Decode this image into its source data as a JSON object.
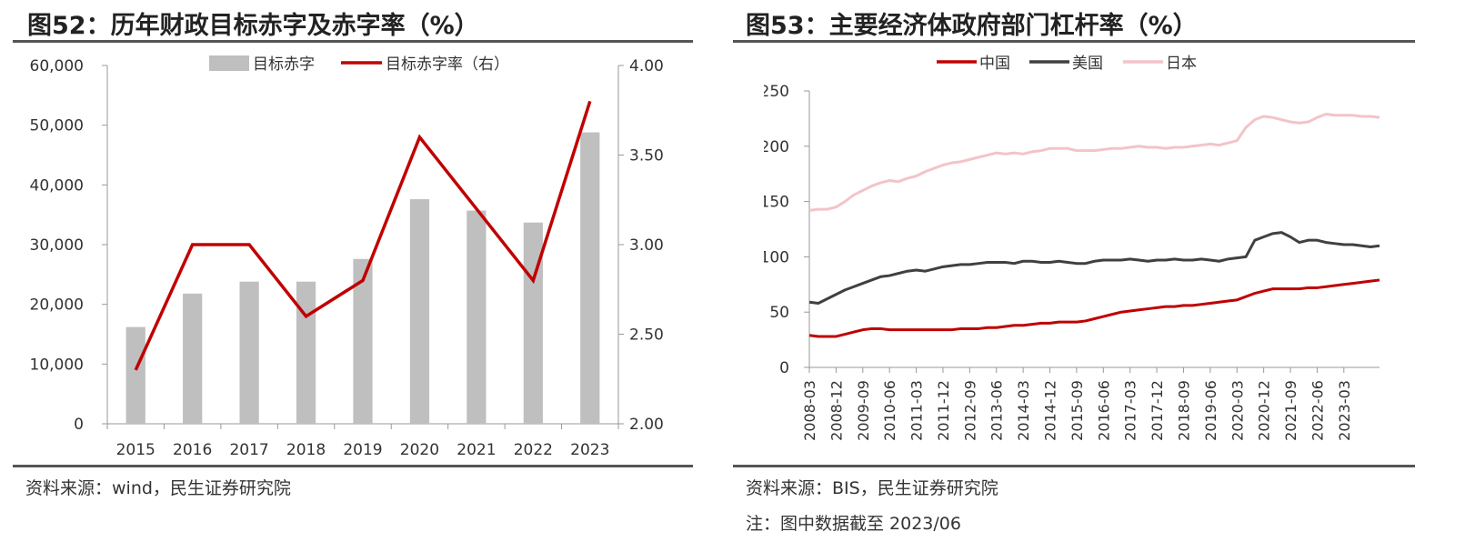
{
  "left": {
    "title": "图52：历年财政目标赤字及赤字率（%）",
    "source": "资料来源：wind，民生证券研究院",
    "chart_data": {
      "type": "bar",
      "categories": [
        "2015",
        "2016",
        "2017",
        "2018",
        "2019",
        "2020",
        "2021",
        "2022",
        "2023"
      ],
      "series": [
        {
          "name": "目标赤字",
          "type": "bar",
          "axis": "left",
          "color": "#bfbfbf",
          "values": [
            16200,
            21800,
            23800,
            23800,
            27600,
            37600,
            35700,
            33700,
            48800
          ]
        },
        {
          "name": "目标赤字率（右）",
          "type": "line",
          "axis": "right",
          "color": "#c00000",
          "values": [
            2.3,
            3.0,
            3.0,
            2.6,
            2.8,
            3.6,
            3.2,
            2.8,
            3.8
          ]
        }
      ],
      "ylim": [
        0,
        60000
      ],
      "y_ticks": [
        0,
        10000,
        20000,
        30000,
        40000,
        50000,
        60000
      ],
      "y_tick_labels": [
        "0",
        "10,000",
        "20,000",
        "30,000",
        "40,000",
        "50,000",
        "60,000"
      ],
      "y2lim": [
        2.0,
        4.0
      ],
      "y2_ticks": [
        2.0,
        2.5,
        3.0,
        3.5,
        4.0
      ],
      "y2_tick_labels": [
        "2.00",
        "2.50",
        "3.00",
        "3.50",
        "4.00"
      ],
      "legend": "top",
      "grid": false
    }
  },
  "right": {
    "title": "图53：主要经济体政府部门杠杆率（%）",
    "source": "资料来源：BIS，民生证券研究院",
    "note": "注：图中数据截至 2023/06",
    "chart_data": {
      "type": "line",
      "x_tick_labels": [
        "2008-03",
        "2008-12",
        "2009-09",
        "2010-06",
        "2011-03",
        "2011-12",
        "2012-09",
        "2013-06",
        "2014-03",
        "2014-12",
        "2015-09",
        "2016-06",
        "2017-03",
        "2017-12",
        "2018-09",
        "2019-06",
        "2020-03",
        "2020-12",
        "2021-09",
        "2022-06",
        "2023-03"
      ],
      "x_start": "2008-03",
      "x_end": "2023-06",
      "ylim": [
        0,
        250
      ],
      "y_ticks": [
        0,
        50,
        100,
        150,
        200,
        250
      ],
      "legend": "top",
      "grid": false,
      "series": [
        {
          "name": "中国",
          "color": "#c00000",
          "values": [
            29,
            28,
            28,
            28,
            30,
            32,
            34,
            35,
            35,
            34,
            34,
            34,
            34,
            34,
            34,
            34,
            34,
            35,
            35,
            35,
            36,
            36,
            37,
            38,
            38,
            39,
            40,
            40,
            41,
            41,
            41,
            42,
            44,
            46,
            48,
            50,
            51,
            52,
            53,
            54,
            55,
            55,
            56,
            56,
            57,
            58,
            59,
            60,
            61,
            64,
            67,
            69,
            71,
            71,
            71,
            71,
            72,
            72,
            73,
            74,
            75,
            76,
            77,
            78,
            79
          ]
        },
        {
          "name": "美国",
          "color": "#404040",
          "values": [
            59,
            58,
            62,
            66,
            70,
            73,
            76,
            79,
            82,
            83,
            85,
            87,
            88,
            87,
            89,
            91,
            92,
            93,
            93,
            94,
            95,
            95,
            95,
            94,
            96,
            96,
            95,
            95,
            96,
            95,
            94,
            94,
            96,
            97,
            97,
            97,
            98,
            97,
            96,
            97,
            97,
            98,
            97,
            97,
            98,
            97,
            96,
            98,
            99,
            100,
            115,
            118,
            121,
            122,
            118,
            113,
            115,
            115,
            113,
            112,
            111,
            111,
            110,
            109,
            110
          ]
        },
        {
          "name": "日本",
          "color": "#f2c4c8",
          "values": [
            142,
            143,
            143,
            145,
            150,
            156,
            160,
            164,
            167,
            169,
            168,
            171,
            173,
            177,
            180,
            183,
            185,
            186,
            188,
            190,
            192,
            194,
            193,
            194,
            193,
            195,
            196,
            198,
            198,
            198,
            196,
            196,
            196,
            197,
            198,
            198,
            199,
            200,
            199,
            199,
            198,
            199,
            199,
            200,
            201,
            202,
            201,
            203,
            205,
            217,
            224,
            227,
            226,
            224,
            222,
            221,
            222,
            226,
            229,
            228,
            228,
            228,
            227,
            227,
            226
          ]
        }
      ]
    }
  }
}
